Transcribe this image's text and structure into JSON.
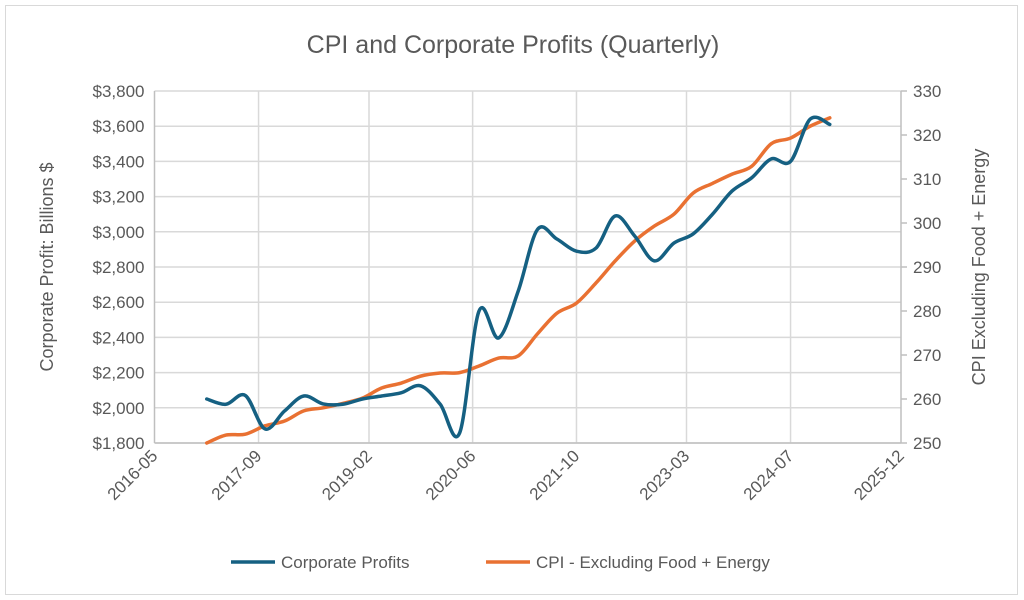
{
  "chart_data": {
    "type": "line",
    "title": "CPI and Corporate Profits (Quarterly)",
    "ylabel": "Corporate Profit: Billions $",
    "y2label": "CPI Excluding Food + Energy",
    "xlim": [
      "2016-05",
      "2025-12"
    ],
    "x_ticks": [
      "2016-05",
      "2017-09",
      "2019-02",
      "2020-06",
      "2021-10",
      "2023-03",
      "2024-07",
      "2025-12"
    ],
    "ylim": [
      1800,
      3800
    ],
    "y_ticks": [
      "$1,800",
      "$2,000",
      "$2,200",
      "$2,400",
      "$2,600",
      "$2,800",
      "$3,000",
      "$3,200",
      "$3,400",
      "$3,600",
      "$3,800"
    ],
    "y2lim": [
      250,
      330
    ],
    "y2_ticks": [
      "250",
      "260",
      "270",
      "280",
      "290",
      "300",
      "310",
      "320",
      "330"
    ],
    "grid": true,
    "legend": "bottom",
    "x": [
      "2017-01",
      "2017-04",
      "2017-07",
      "2017-10",
      "2018-01",
      "2018-04",
      "2018-07",
      "2018-10",
      "2019-01",
      "2019-04",
      "2019-07",
      "2019-10",
      "2020-01",
      "2020-04",
      "2020-07",
      "2020-10",
      "2021-01",
      "2021-04",
      "2021-07",
      "2021-10",
      "2022-01",
      "2022-04",
      "2022-07",
      "2022-10",
      "2023-01",
      "2023-04",
      "2023-07",
      "2023-10",
      "2024-01",
      "2024-04",
      "2024-07",
      "2024-10",
      "2025-01"
    ],
    "series": [
      {
        "name": "Corporate Profits",
        "axis": "left",
        "color": "#156082",
        "values": [
          2050,
          2020,
          2070,
          1880,
          1982,
          2067,
          2022,
          2020,
          2050,
          2067,
          2085,
          2125,
          2020,
          1857,
          2550,
          2397,
          2664,
          3013,
          2959,
          2890,
          2908,
          3090,
          2976,
          2835,
          2936,
          2988,
          3100,
          3232,
          3307,
          3414,
          3400,
          3640,
          3610
        ]
      },
      {
        "name": "CPI - Excluding Food + Energy",
        "axis": "right",
        "color": "#e97132",
        "values": [
          250,
          251.8,
          252,
          253.9,
          255,
          257.3,
          258,
          259,
          260.2,
          262.5,
          263.6,
          265.2,
          265.9,
          266,
          267.5,
          269.3,
          269.8,
          274.8,
          279.5,
          281.8,
          286.4,
          291.4,
          295.9,
          299.3,
          302,
          306.8,
          309,
          311.1,
          312.9,
          318,
          319.3,
          322,
          323.9
        ]
      }
    ]
  }
}
